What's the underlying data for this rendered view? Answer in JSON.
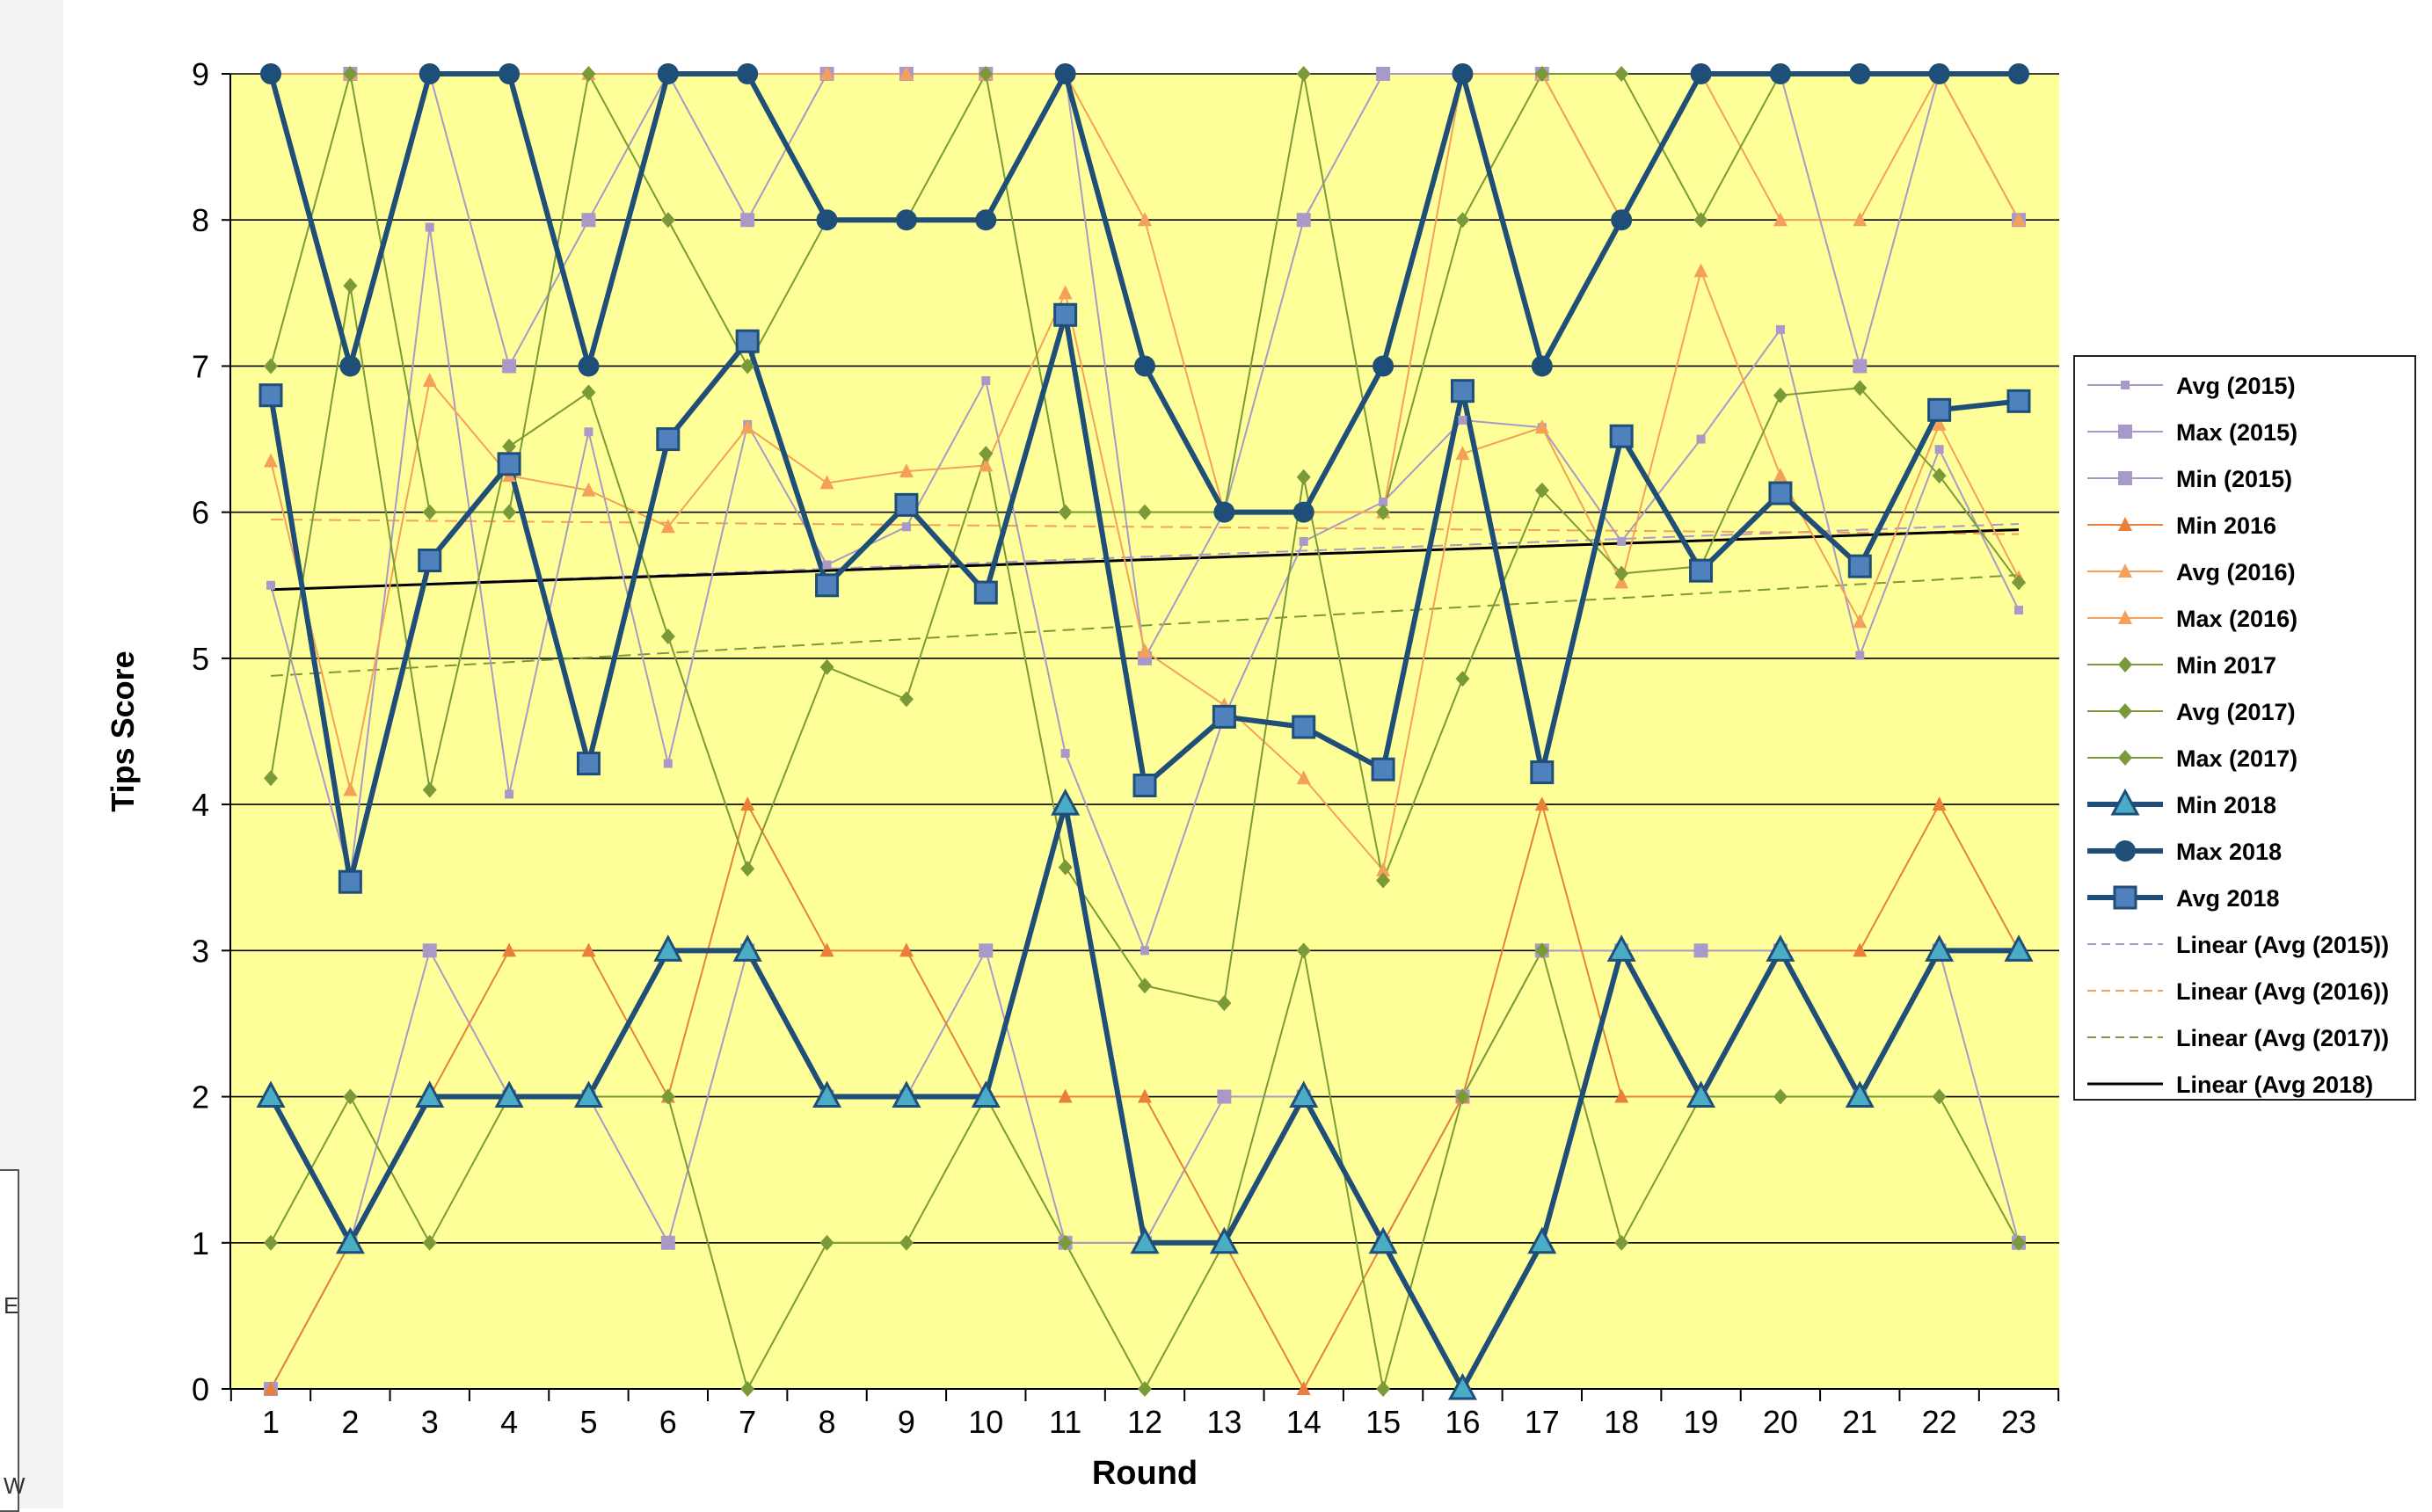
{
  "chart_data": {
    "type": "line",
    "title": "",
    "xlabel": "Round",
    "ylabel": "Tips Score",
    "xlim": [
      1,
      23
    ],
    "ylim": [
      0,
      9
    ],
    "y_ticks": [
      0,
      1,
      2,
      3,
      4,
      5,
      6,
      7,
      8,
      9
    ],
    "categories": [
      1,
      2,
      3,
      4,
      5,
      6,
      7,
      8,
      9,
      10,
      11,
      12,
      13,
      14,
      15,
      16,
      17,
      18,
      19,
      20,
      21,
      22,
      23
    ],
    "grid": true,
    "plot_background": "#ffff99",
    "legend_placement": "right",
    "series": [
      {
        "name": "Avg (2015)",
        "color": "#a899c8",
        "marker": "square-small",
        "width": 2,
        "values": [
          5.5,
          3.5,
          7.95,
          4.07,
          6.55,
          4.28,
          6.6,
          5.64,
          5.9,
          6.9,
          4.35,
          3.0,
          4.6,
          5.8,
          6.07,
          6.63,
          6.58,
          5.8,
          6.5,
          7.25,
          5.02,
          6.43,
          5.33
        ]
      },
      {
        "name": "Max (2015)",
        "color": "#a899c8",
        "marker": "square",
        "width": 2,
        "values": [
          9,
          9,
          9,
          7,
          8,
          9,
          8,
          9,
          9,
          9,
          9,
          5,
          6,
          8,
          9,
          9,
          9,
          8,
          9,
          9,
          7,
          9,
          8
        ]
      },
      {
        "name": "Min (2015)",
        "color": "#a899c8",
        "marker": "square",
        "width": 2,
        "values": [
          0,
          1,
          3,
          2,
          2,
          1,
          3,
          2,
          2,
          3,
          1,
          1,
          2,
          2,
          1,
          2,
          3,
          3,
          3,
          3,
          2,
          3,
          1
        ]
      },
      {
        "name": "Min 2016",
        "color": "#e8803a",
        "marker": "triangle-small",
        "width": 2,
        "values": [
          0,
          1,
          2,
          3,
          3,
          2,
          4,
          3,
          3,
          2,
          2,
          2,
          1,
          0,
          1,
          2,
          4,
          2,
          2,
          3,
          3,
          4,
          3
        ]
      },
      {
        "name": "Avg (2016)",
        "color": "#f5a05a",
        "marker": "triangle-small",
        "width": 2,
        "values": [
          6.35,
          4.1,
          6.9,
          6.25,
          6.15,
          5.9,
          6.58,
          6.2,
          6.28,
          6.32,
          7.5,
          5.05,
          4.68,
          4.18,
          3.55,
          6.4,
          6.58,
          5.52,
          7.65,
          6.25,
          5.25,
          6.6,
          5.55
        ]
      },
      {
        "name": "Max (2016)",
        "color": "#f5a05a",
        "marker": "triangle-small",
        "width": 2,
        "values": [
          9,
          9,
          9,
          9,
          9,
          9,
          9,
          9,
          9,
          9,
          9,
          8,
          6,
          6,
          6,
          9,
          9,
          8,
          9,
          8,
          8,
          9,
          8
        ]
      },
      {
        "name": "Min 2017",
        "color": "#7a9a3a",
        "marker": "diamond",
        "width": 2,
        "values": [
          1,
          2,
          1,
          2,
          2,
          2,
          0,
          1,
          1,
          2,
          1,
          0,
          1,
          3,
          0,
          2,
          3,
          1,
          2,
          2,
          2,
          2,
          1
        ]
      },
      {
        "name": "Avg (2017)",
        "color": "#7a9a3a",
        "marker": "diamond",
        "width": 2,
        "values": [
          4.18,
          7.55,
          4.1,
          6.45,
          6.82,
          5.15,
          3.56,
          4.94,
          4.72,
          6.4,
          3.57,
          2.76,
          2.64,
          6.24,
          3.48,
          4.86,
          6.15,
          5.58,
          5.63,
          6.8,
          6.85,
          6.25,
          5.52
        ]
      },
      {
        "name": "Max (2017)",
        "color": "#7a9a3a",
        "marker": "diamond",
        "width": 2,
        "values": [
          7,
          9,
          6,
          6,
          9,
          8,
          7,
          8,
          8,
          9,
          6,
          6,
          6,
          9,
          6,
          8,
          9,
          9,
          8,
          9,
          9,
          9,
          9
        ]
      },
      {
        "name": "Min 2018",
        "color": "#1f4e79",
        "marker": "triangle",
        "width": 6,
        "values": [
          2,
          1,
          2,
          2,
          2,
          3,
          3,
          2,
          2,
          2,
          4,
          1,
          1,
          2,
          1,
          0,
          1,
          3,
          2,
          3,
          2,
          3,
          3
        ]
      },
      {
        "name": "Max 2018",
        "color": "#1f4e79",
        "marker": "circle",
        "width": 6,
        "values": [
          9,
          7,
          9,
          9,
          7,
          9,
          9,
          8,
          8,
          8,
          9,
          7,
          6,
          6,
          7,
          9,
          7,
          8,
          9,
          9,
          9,
          9,
          9
        ]
      },
      {
        "name": "Avg 2018",
        "color": "#1f4e79",
        "marker": "square-blue",
        "width": 6,
        "values": [
          6.8,
          3.47,
          5.67,
          6.33,
          4.28,
          6.5,
          7.17,
          5.5,
          6.05,
          5.45,
          7.35,
          4.13,
          4.6,
          4.53,
          4.24,
          6.83,
          4.22,
          6.52,
          5.6,
          6.13,
          5.63,
          6.7,
          6.76
        ]
      }
    ],
    "trendlines": [
      {
        "name": "Linear (Avg (2015))",
        "color": "#a899c8",
        "dash": true,
        "width": 2,
        "y_start": 5.47,
        "y_end": 5.92
      },
      {
        "name": "Linear (Avg (2016))",
        "color": "#f5a05a",
        "dash": true,
        "width": 2,
        "y_start": 5.95,
        "y_end": 5.85
      },
      {
        "name": "Linear (Avg (2017))",
        "color": "#7a9a3a",
        "dash": true,
        "width": 2,
        "y_start": 4.88,
        "y_end": 5.57
      },
      {
        "name": "Linear (Avg 2018)",
        "color": "#000000",
        "dash": false,
        "width": 3,
        "y_start": 5.47,
        "y_end": 5.88
      }
    ]
  },
  "legend": {
    "items": [
      {
        "label": "Avg (2015)"
      },
      {
        "label": "Max (2015)"
      },
      {
        "label": "Min (2015)"
      },
      {
        "label": "Min 2016"
      },
      {
        "label": "Avg (2016)"
      },
      {
        "label": "Max (2016)"
      },
      {
        "label": "Min 2017"
      },
      {
        "label": "Avg (2017)"
      },
      {
        "label": "Max (2017)"
      },
      {
        "label": "Min 2018"
      },
      {
        "label": "Max 2018"
      },
      {
        "label": "Avg 2018"
      },
      {
        "label": "Linear (Avg (2015))"
      },
      {
        "label": "Linear (Avg (2016))"
      },
      {
        "label": "Linear (Avg (2017))"
      },
      {
        "label": "Linear (Avg 2018)"
      }
    ]
  },
  "edge_fragments": [
    "E",
    "W"
  ]
}
